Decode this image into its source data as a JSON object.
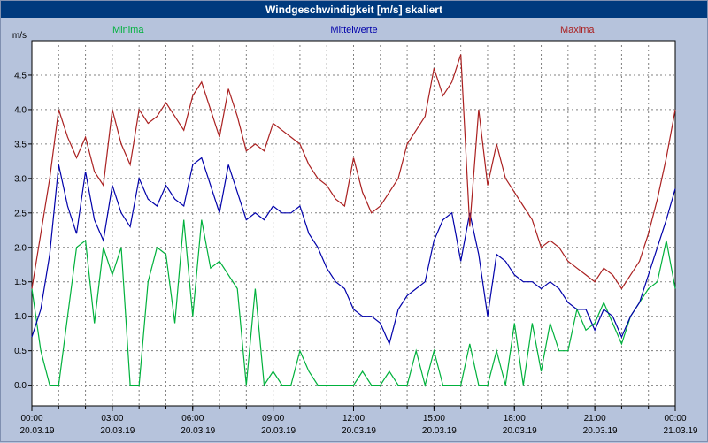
{
  "window": {
    "title": "Windgeschwindigkeit [m/s] skaliert"
  },
  "legend": {
    "minima": "Minima",
    "mittelwerte": "Mittelwerte",
    "maxima": "Maxima"
  },
  "colors": {
    "background": "#b6c3dc",
    "titlebar": "#003a7e",
    "titlebar_text": "#ffffff",
    "plot_bg": "#ffffff",
    "grid": "#808080",
    "axis": "#000000"
  },
  "chart_data": {
    "type": "line",
    "title": "Windgeschwindigkeit [m/s] skaliert",
    "ylabel": "m/s",
    "ylim": [
      -0.3,
      5.0
    ],
    "yticks": [
      0.0,
      0.5,
      1.0,
      1.5,
      2.0,
      2.5,
      3.0,
      3.5,
      4.0,
      4.5
    ],
    "grid": "dashed gray, vertical every hour, horizontal every 0.5 m/s",
    "legend_position": "top (Minima left, Mittelwerte center, Maxima right)",
    "x_total_hours": 24,
    "x_start_hour": 0,
    "x_interval_minutes": 20,
    "n_points": 73,
    "x_major_tick_hours": [
      0,
      3,
      6,
      9,
      12,
      15,
      18,
      21,
      24
    ],
    "x_major_tick_times": [
      "00:00",
      "03:00",
      "06:00",
      "09:00",
      "12:00",
      "15:00",
      "18:00",
      "21:00",
      "00:00"
    ],
    "x_major_tick_dates": [
      "20.03.19",
      "20.03.19",
      "20.03.19",
      "20.03.19",
      "20.03.19",
      "20.03.19",
      "20.03.19",
      "20.03.19",
      "21.03.19"
    ],
    "series": [
      {
        "name": "Minima",
        "color": "#00b13c",
        "values": [
          1.4,
          0.5,
          0.0,
          0.0,
          1.0,
          2.0,
          2.1,
          0.9,
          2.0,
          1.6,
          2.0,
          0.0,
          0.0,
          1.5,
          2.0,
          1.9,
          0.9,
          2.4,
          1.0,
          2.4,
          1.7,
          1.8,
          1.6,
          1.4,
          0.0,
          1.4,
          0.0,
          0.2,
          0.0,
          0.0,
          0.5,
          0.2,
          0.0,
          0.0,
          0.0,
          0.0,
          0.0,
          0.2,
          0.0,
          0.0,
          0.2,
          0.0,
          0.0,
          0.5,
          0.0,
          0.5,
          0.0,
          0.0,
          0.0,
          0.6,
          0.0,
          0.0,
          0.5,
          0.0,
          0.9,
          0.0,
          0.9,
          0.2,
          0.9,
          0.5,
          0.5,
          1.1,
          0.8,
          0.9,
          1.2,
          0.9,
          0.6,
          1.0,
          1.2,
          1.4,
          1.5,
          2.1,
          1.4
        ]
      },
      {
        "name": "Mittelwerte",
        "color": "#0000aa",
        "values": [
          0.7,
          1.1,
          1.9,
          3.2,
          2.6,
          2.2,
          3.1,
          2.4,
          2.1,
          2.9,
          2.5,
          2.3,
          3.0,
          2.7,
          2.6,
          2.9,
          2.7,
          2.6,
          3.2,
          3.3,
          2.9,
          2.5,
          3.2,
          2.8,
          2.4,
          2.5,
          2.4,
          2.6,
          2.5,
          2.5,
          2.6,
          2.2,
          2.0,
          1.7,
          1.5,
          1.4,
          1.1,
          1.0,
          1.0,
          0.9,
          0.6,
          1.1,
          1.3,
          1.4,
          1.5,
          2.1,
          2.4,
          2.5,
          1.8,
          2.5,
          1.9,
          1.0,
          1.9,
          1.8,
          1.6,
          1.5,
          1.5,
          1.4,
          1.5,
          1.4,
          1.2,
          1.1,
          1.1,
          0.8,
          1.1,
          1.0,
          0.7,
          1.0,
          1.2,
          1.6,
          2.0,
          2.4,
          2.85
        ]
      },
      {
        "name": "Maxima",
        "color": "#aa2020",
        "values": [
          1.4,
          2.2,
          3.0,
          4.0,
          3.6,
          3.3,
          3.6,
          3.1,
          2.9,
          4.0,
          3.5,
          3.2,
          4.0,
          3.8,
          3.9,
          4.1,
          3.9,
          3.7,
          4.2,
          4.4,
          4.0,
          3.6,
          4.3,
          3.9,
          3.4,
          3.5,
          3.4,
          3.8,
          3.7,
          3.6,
          3.5,
          3.2,
          3.0,
          2.9,
          2.7,
          2.6,
          3.3,
          2.8,
          2.5,
          2.6,
          2.8,
          3.0,
          3.5,
          3.7,
          3.9,
          4.6,
          4.2,
          4.4,
          4.8,
          2.3,
          4.0,
          2.9,
          3.5,
          3.0,
          2.8,
          2.6,
          2.4,
          2.0,
          2.1,
          2.0,
          1.8,
          1.7,
          1.6,
          1.5,
          1.7,
          1.6,
          1.4,
          1.6,
          1.8,
          2.2,
          2.7,
          3.3,
          4.0
        ]
      }
    ]
  }
}
